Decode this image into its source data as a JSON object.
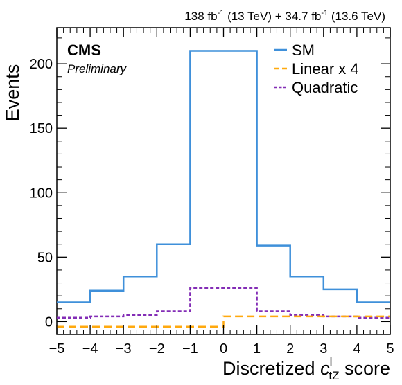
{
  "header": {
    "cms": "CMS",
    "preliminary": "Preliminary",
    "lumi": {
      "a": "138 fb",
      "a_sup": "-1",
      "b": " (13 TeV) + 34.7 fb",
      "b_sup": "-1",
      "c": " (13.6 TeV)"
    }
  },
  "colors": {
    "sm": "#3f90da",
    "linear": "#ffa90e",
    "quadratic": "#832db6"
  },
  "chart_data": {
    "type": "line",
    "drawstyle": "histogram-step",
    "xlabel": {
      "prefix": "Discretized ",
      "symbol": "c",
      "superscript": "l",
      "subscript": "tZ",
      "suffix": " score"
    },
    "ylabel": "Events",
    "xlim": [
      -5,
      5
    ],
    "ylim": [
      -10,
      228
    ],
    "xticks": [
      "−5",
      "−4",
      "−3",
      "−2",
      "−1",
      "0",
      "1",
      "2",
      "3",
      "4",
      "5"
    ],
    "xtick_values": [
      -5,
      -4,
      -3,
      -2,
      -1,
      0,
      1,
      2,
      3,
      4,
      5
    ],
    "yticks": [
      "0",
      "50",
      "100",
      "150",
      "200"
    ],
    "ytick_values": [
      0,
      50,
      100,
      150,
      200
    ],
    "bin_edges": [
      -5,
      -4,
      -3,
      -2,
      -1,
      0,
      1,
      2,
      3,
      4,
      5
    ],
    "legend_position": "top-right",
    "series": [
      {
        "name": "SM",
        "style": "solid",
        "values": [
          15,
          24,
          35,
          60,
          210,
          210,
          59,
          35,
          25,
          15
        ]
      },
      {
        "name": "Linear x 4",
        "style": "dashed",
        "values": [
          -4,
          -4,
          -4,
          -4,
          -4,
          4,
          4,
          4,
          4,
          4
        ]
      },
      {
        "name": "Quadratic",
        "style": "dotted",
        "values": [
          3,
          4,
          5,
          8,
          26,
          26,
          8,
          5,
          4,
          3
        ]
      }
    ]
  }
}
